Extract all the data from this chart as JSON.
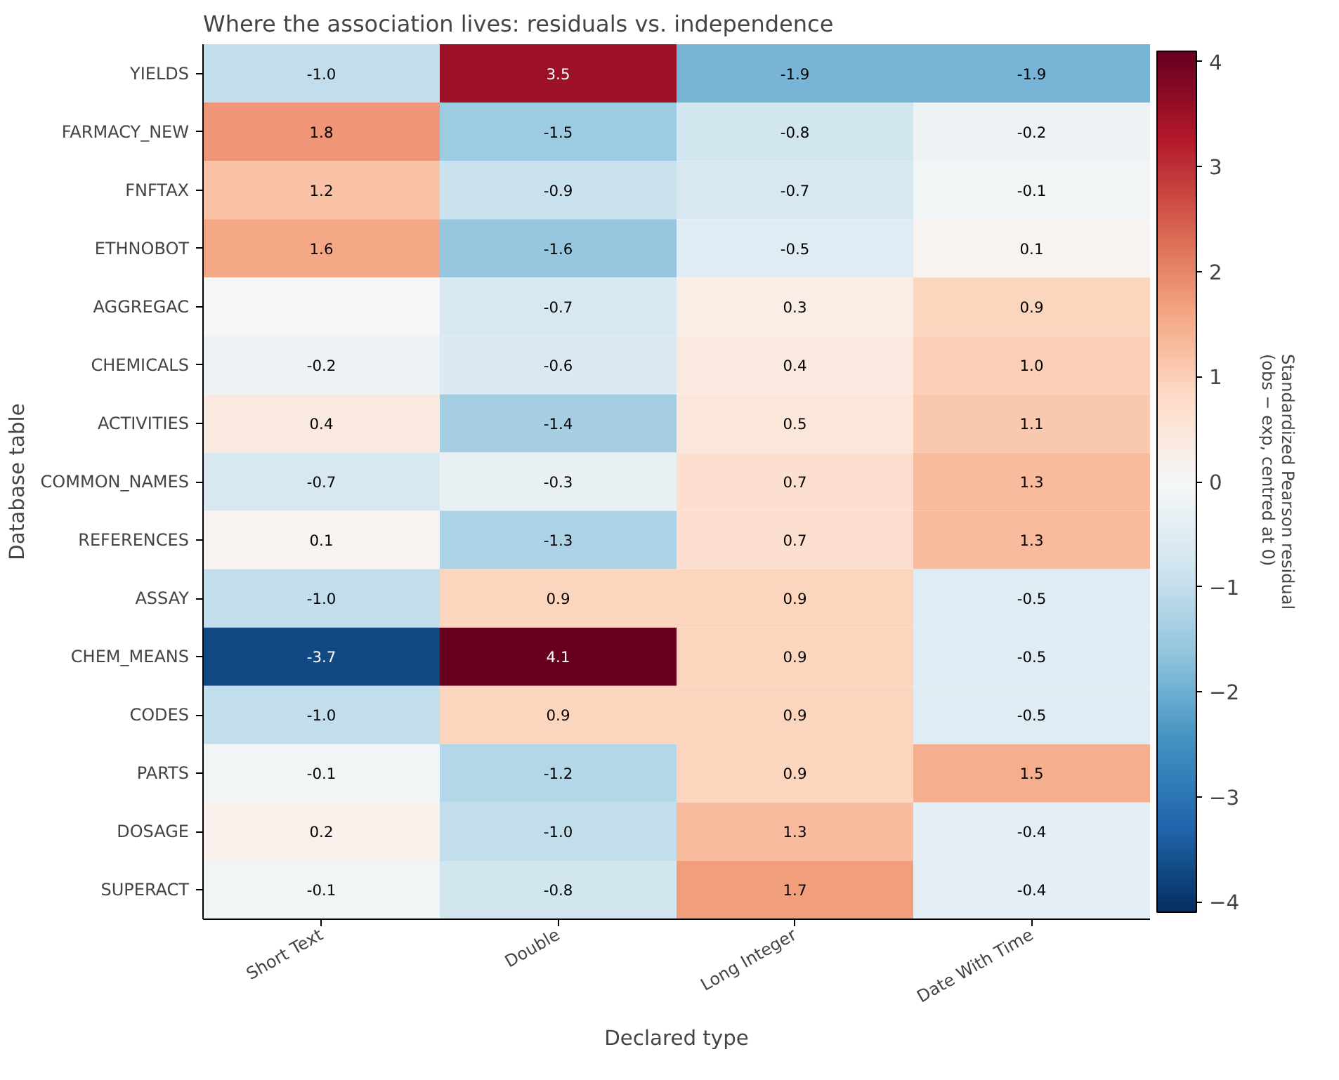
{
  "chart_data": {
    "type": "heatmap",
    "title": "Where the association lives: residuals vs. independence",
    "xlabel": "Declared type",
    "ylabel": "Database table",
    "clabel": "Standardized Pearson residual\n(obs − exp, centred at 0)",
    "categories": [
      "Short Text",
      "Double",
      "Long Integer",
      "Date With Time"
    ],
    "y_categories": [
      "YIELDS",
      "FARMACY_NEW",
      "FNFTAX",
      "ETHNOBOT",
      "AGGREGAC",
      "CHEMICALS",
      "ACTIVITIES",
      "COMMON_NAMES",
      "REFERENCES",
      "ASSAY",
      "CHEM_MEANS",
      "CODES",
      "PARTS",
      "DOSAGE",
      "SUPERACT"
    ],
    "cells": [
      [
        -1.0,
        3.5,
        -1.9,
        -1.9
      ],
      [
        1.8,
        -1.5,
        -0.8,
        -0.2
      ],
      [
        1.2,
        -0.9,
        -0.7,
        -0.1
      ],
      [
        1.6,
        -1.6,
        -0.5,
        0.1
      ],
      [
        0.0,
        -0.7,
        0.3,
        0.9
      ],
      [
        -0.2,
        -0.6,
        0.4,
        1.0
      ],
      [
        0.4,
        -1.4,
        0.5,
        1.1
      ],
      [
        -0.7,
        -0.3,
        0.7,
        1.3
      ],
      [
        0.1,
        -1.3,
        0.7,
        1.3
      ],
      [
        -1.0,
        0.9,
        0.9,
        -0.5
      ],
      [
        -3.7,
        4.1,
        0.9,
        -0.5
      ],
      [
        -1.0,
        0.9,
        0.9,
        -0.5
      ],
      [
        -0.1,
        -1.2,
        0.9,
        1.5
      ],
      [
        0.2,
        -1.0,
        1.3,
        -0.4
      ],
      [
        -0.1,
        -0.8,
        1.7,
        -0.4
      ]
    ],
    "cell_labels": [
      [
        "-1.0",
        "3.5",
        "-1.9",
        "-1.9"
      ],
      [
        "1.8",
        "-1.5",
        "-0.8",
        "-0.2"
      ],
      [
        "1.2",
        "-0.9",
        "-0.7",
        "-0.1"
      ],
      [
        "1.6",
        "-1.6",
        "-0.5",
        "0.1"
      ],
      [
        null,
        "-0.7",
        "0.3",
        "0.9"
      ],
      [
        "-0.2",
        "-0.6",
        "0.4",
        "1.0"
      ],
      [
        "0.4",
        "-1.4",
        "0.5",
        "1.1"
      ],
      [
        "-0.7",
        "-0.3",
        "0.7",
        "1.3"
      ],
      [
        "0.1",
        "-1.3",
        "0.7",
        "1.3"
      ],
      [
        "-1.0",
        "0.9",
        "0.9",
        "-0.5"
      ],
      [
        "-3.7",
        "4.1",
        "0.9",
        "-0.5"
      ],
      [
        "-1.0",
        "0.9",
        "0.9",
        "-0.5"
      ],
      [
        "-0.1",
        "-1.2",
        "0.9",
        "1.5"
      ],
      [
        "0.2",
        "-1.0",
        "1.3",
        "-0.4"
      ],
      [
        "-0.1",
        "-0.8",
        "1.7",
        "-0.4"
      ]
    ],
    "clim": [
      -4.1,
      4.1
    ],
    "cticks": [
      {
        "value": -4,
        "label": "−4"
      },
      {
        "value": -3,
        "label": "−3"
      },
      {
        "value": -2,
        "label": "−2"
      },
      {
        "value": -1,
        "label": "−1"
      },
      0,
      1,
      2,
      3,
      4
    ]
  }
}
